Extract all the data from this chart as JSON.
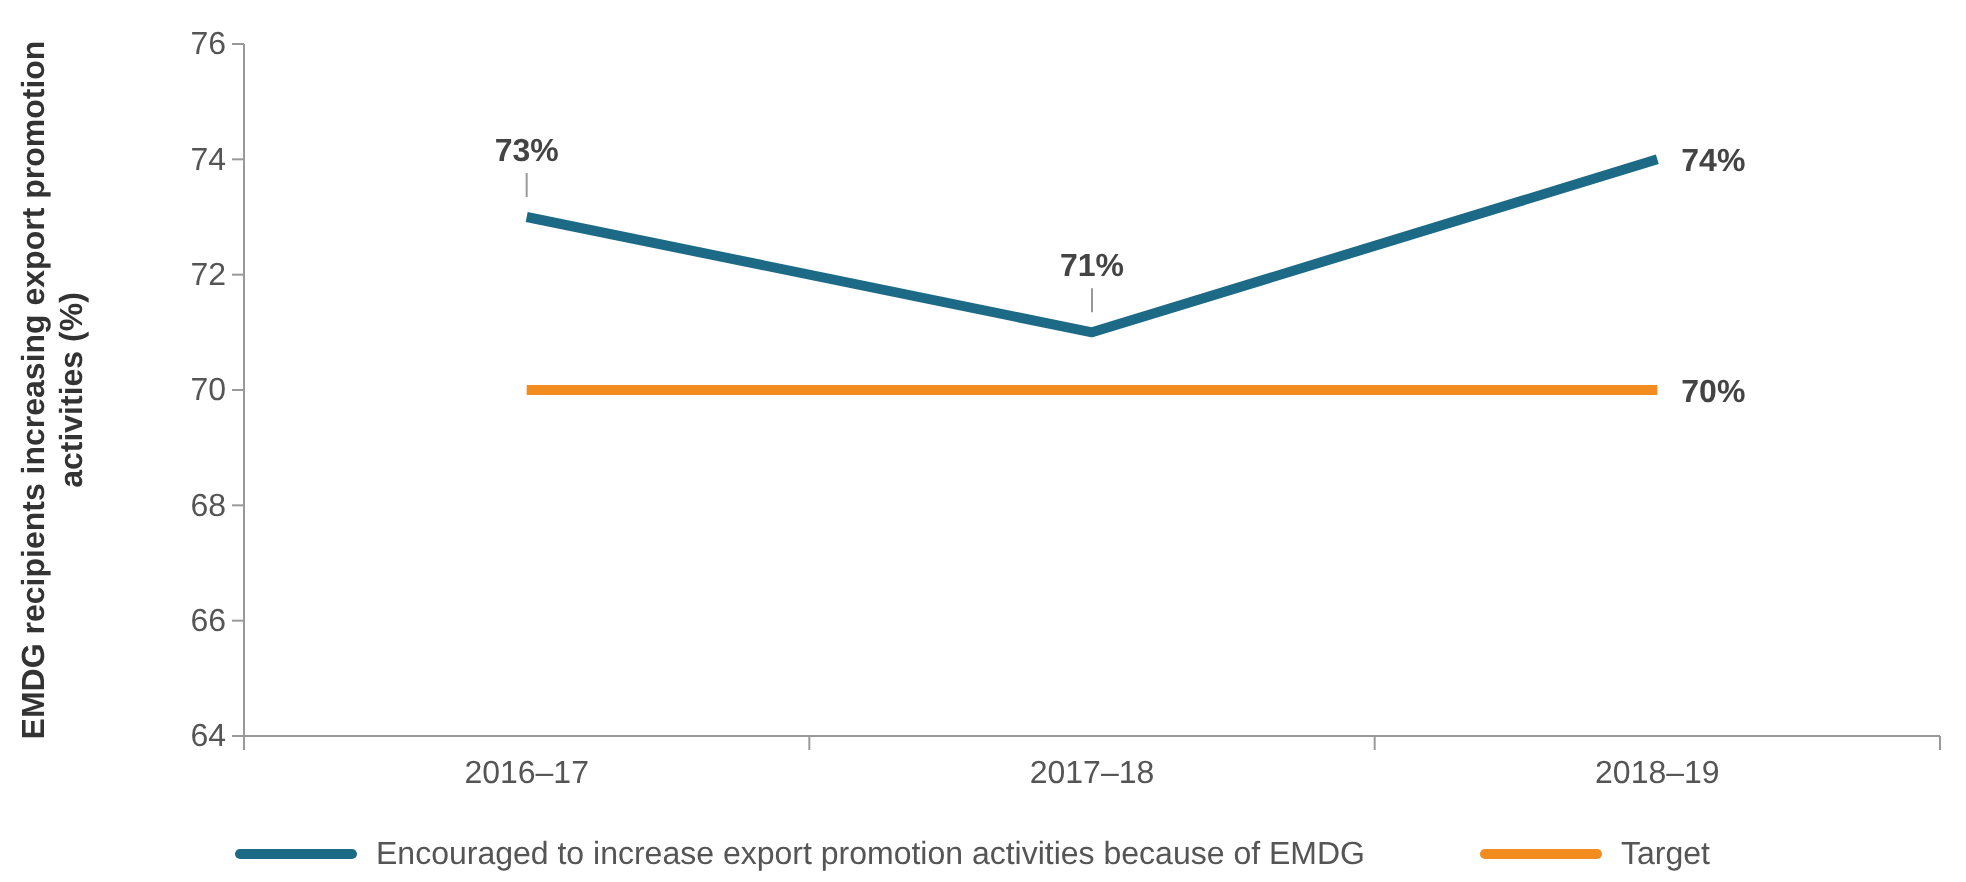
{
  "chart_data": {
    "type": "line",
    "ylabel": "EMDG recipients increasing export promotion activities (%)",
    "categories": [
      "2016–17",
      "2017–18",
      "2018–19"
    ],
    "series": [
      {
        "name": "Encouraged to increase export promotion activities because of EMDG",
        "color": "#1d6a87",
        "values": [
          73,
          71,
          74
        ],
        "value_labels": [
          "73%",
          "71%",
          "74%"
        ]
      },
      {
        "name": "Target",
        "color": "#f28c1e",
        "values": [
          70,
          70,
          70
        ],
        "value_labels": [
          null,
          null,
          "70%"
        ]
      }
    ],
    "ylim": [
      64,
      76
    ],
    "yticks": [
      64,
      66,
      68,
      70,
      72,
      74,
      76
    ],
    "grid": false,
    "legend": "bottom",
    "marker": "none",
    "line_style": "solid"
  }
}
